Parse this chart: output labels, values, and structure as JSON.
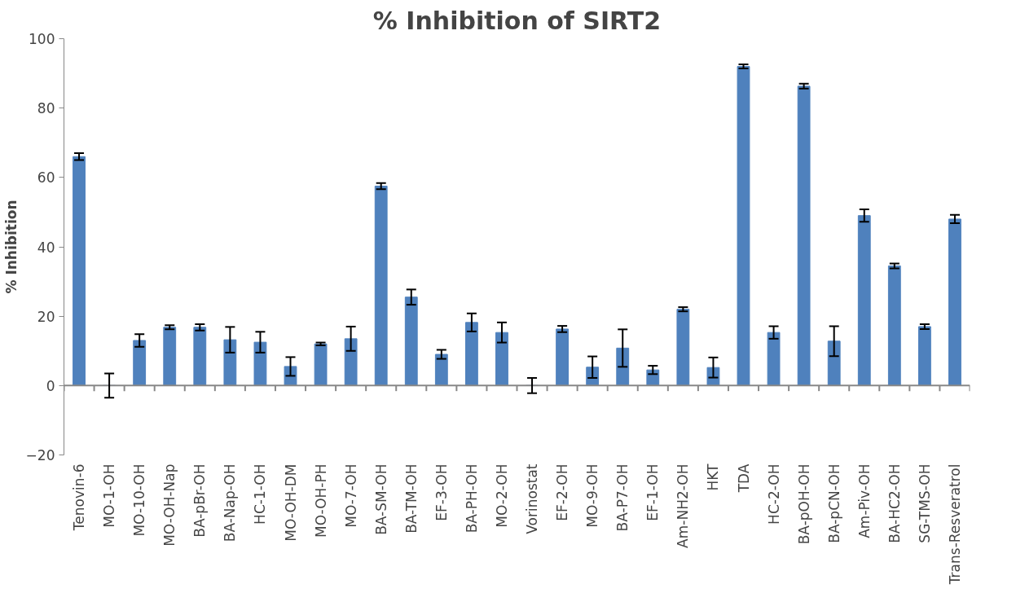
{
  "chart_data": {
    "type": "bar",
    "title": "% Inhibition of SIRT2",
    "ylabel": "% Inhibition",
    "categories": [
      "Tenovin-6",
      "MO-1-OH",
      "MO-10-OH",
      "MO-OH-Nap",
      "BA-pBr-OH",
      "BA-Nap-OH",
      "HC-1-OH",
      "MO-OH-DM",
      "MO-OH-PH",
      "MO-7-OH",
      "BA-SM-OH",
      "BA-TM-OH",
      "EF-3-OH",
      "BA-PH-OH",
      "MO-2-OH",
      "Vorinostat",
      "EF-2-OH",
      "MO-9-OH",
      "BA-P7-OH",
      "EF-1-OH",
      "Am-NH2-OH",
      "HKT",
      "TDA",
      "HC-2-OH",
      "BA-pOH-OH",
      "BA-pCN-OH",
      "Am-Piv-OH",
      "BA-HC2-OH",
      "SG-TMS-OH",
      "Trans-Resveratrol"
    ],
    "values": [
      66,
      0,
      13,
      16.8,
      16.8,
      13.2,
      12.5,
      5.5,
      12,
      13.5,
      57.5,
      25.5,
      9,
      18.2,
      15.3,
      0,
      16.3,
      5.3,
      10.8,
      4.5,
      22,
      5.2,
      92,
      15.3,
      86.3,
      12.8,
      49,
      34.5,
      17,
      48
    ],
    "errors": [
      1,
      3.5,
      1.8,
      0.6,
      0.9,
      3.7,
      3,
      2.7,
      0.4,
      3.5,
      0.9,
      2.2,
      1.3,
      2.6,
      2.9,
      2.2,
      0.9,
      3.1,
      5.4,
      1.2,
      0.6,
      2.9,
      0.6,
      1.8,
      0.7,
      4.3,
      1.8,
      0.7,
      0.7,
      1.2
    ],
    "color": "#4f81bd",
    "ylim": [
      -20,
      100
    ],
    "yticks": [
      -20,
      0,
      20,
      40,
      60,
      80,
      100
    ]
  }
}
